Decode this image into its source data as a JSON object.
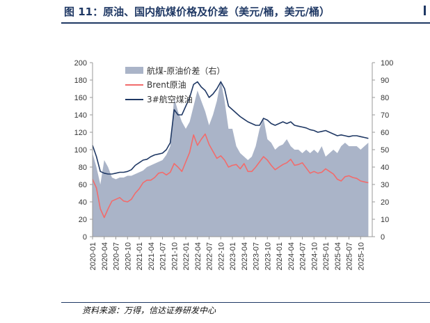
{
  "header": {
    "title": "图 11：原油、国内航煤价格及价差（美元/桶，美元/桶）"
  },
  "footer": {
    "source": "资料来源：万得，信达证券研发中心"
  },
  "colors": {
    "spread": "#aab4c8",
    "brent": "#f26b6b",
    "jet": "#1f3864",
    "axis": "#999999"
  },
  "chart_data": {
    "type": "line",
    "x_tick_labels": [
      "2020-01",
      "2020-04",
      "2020-07",
      "2020-10",
      "2021-01",
      "2021-04",
      "2021-07",
      "2021-10",
      "2022-01",
      "2022-04",
      "2022-07",
      "2022-10",
      "2023-01",
      "2023-04",
      "2023-07",
      "2023-10",
      "2024-01",
      "2024-04",
      "2024-07",
      "2024-10",
      "2025-01",
      "2025-04",
      "2025-07",
      "2025-10"
    ],
    "x_range": [
      "2020-01",
      "2026-01"
    ],
    "ylim_left": [
      0,
      200
    ],
    "ylim_right": [
      0,
      100
    ],
    "yticks_left": [
      0,
      20,
      40,
      60,
      80,
      100,
      120,
      140,
      160,
      180,
      200
    ],
    "yticks_right": [
      0,
      10,
      20,
      30,
      40,
      50,
      60,
      70,
      80,
      90,
      100
    ],
    "grid": false,
    "legend_position": "top-left",
    "x": [
      "2020-01",
      "2020-02",
      "2020-03",
      "2020-04",
      "2020-05",
      "2020-06",
      "2020-07",
      "2020-08",
      "2020-09",
      "2020-10",
      "2020-11",
      "2020-12",
      "2021-01",
      "2021-02",
      "2021-03",
      "2021-04",
      "2021-05",
      "2021-06",
      "2021-07",
      "2021-08",
      "2021-09",
      "2021-10",
      "2021-11",
      "2021-12",
      "2022-01",
      "2022-02",
      "2022-03",
      "2022-04",
      "2022-05",
      "2022-06",
      "2022-07",
      "2022-08",
      "2022-09",
      "2022-10",
      "2022-11",
      "2022-12",
      "2023-01",
      "2023-02",
      "2023-03",
      "2023-04",
      "2023-05",
      "2023-06",
      "2023-07",
      "2023-08",
      "2023-09",
      "2023-10",
      "2023-11",
      "2023-12",
      "2024-01",
      "2024-02",
      "2024-03",
      "2024-04",
      "2024-05",
      "2024-06",
      "2024-07",
      "2024-08",
      "2024-09",
      "2024-10",
      "2024-11",
      "2024-12",
      "2025-01",
      "2025-02",
      "2025-03",
      "2025-04",
      "2025-05",
      "2025-06",
      "2025-07",
      "2025-08",
      "2025-09",
      "2025-10",
      "2025-11",
      "2025-12"
    ],
    "series": [
      {
        "name": "航煤-原油价差（右）",
        "type": "area",
        "axis": "right",
        "values": [
          48,
          40,
          30,
          44,
          40,
          34,
          33,
          34,
          34,
          35,
          35,
          36,
          37,
          38,
          40,
          41,
          42,
          43,
          44,
          47,
          52,
          80,
          72,
          66,
          62,
          66,
          75,
          84,
          78,
          72,
          64,
          70,
          78,
          90,
          78,
          62,
          62,
          52,
          48,
          46,
          44,
          46,
          52,
          62,
          68,
          56,
          54,
          50,
          52,
          53,
          56,
          52,
          50,
          50,
          48,
          50,
          48,
          50,
          48,
          52,
          46,
          48,
          50,
          48,
          52,
          54,
          52,
          52,
          52,
          50,
          52,
          54
        ]
      },
      {
        "name": "Brent原油",
        "type": "line",
        "axis": "left",
        "values": [
          66,
          56,
          32,
          22,
          32,
          41,
          43,
          45,
          41,
          40,
          43,
          50,
          55,
          62,
          65,
          65,
          68,
          73,
          74,
          71,
          74,
          84,
          80,
          75,
          86,
          97,
          117,
          105,
          112,
          118,
          106,
          98,
          90,
          93,
          88,
          80,
          82,
          83,
          78,
          84,
          75,
          75,
          80,
          86,
          92,
          88,
          82,
          77,
          80,
          83,
          85,
          89,
          82,
          83,
          85,
          79,
          73,
          75,
          73,
          74,
          78,
          75,
          72,
          66,
          64,
          69,
          70,
          68,
          67,
          64,
          63,
          62
        ]
      },
      {
        "name": "3#航空煤油",
        "type": "line",
        "axis": "left",
        "values": [
          105,
          92,
          75,
          73,
          72,
          72,
          73,
          74,
          74,
          75,
          77,
          82,
          85,
          88,
          89,
          92,
          94,
          95,
          96,
          100,
          108,
          146,
          140,
          140,
          150,
          160,
          175,
          178,
          172,
          168,
          160,
          164,
          170,
          178,
          170,
          150,
          146,
          142,
          138,
          135,
          132,
          130,
          128,
          128,
          136,
          134,
          130,
          128,
          130,
          132,
          130,
          132,
          128,
          127,
          126,
          125,
          123,
          122,
          120,
          121,
          122,
          120,
          118,
          116,
          117,
          116,
          115,
          116,
          116,
          115,
          114,
          113
        ]
      }
    ]
  }
}
